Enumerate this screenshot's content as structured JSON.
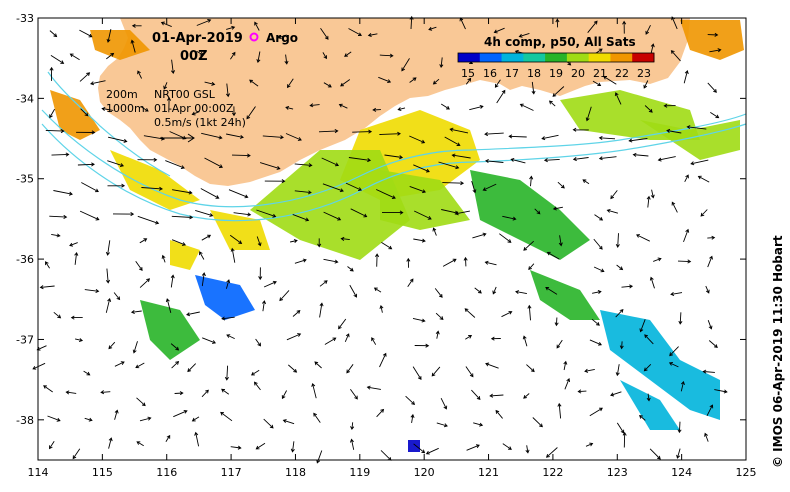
{
  "map": {
    "date_label": "01-Apr-2019",
    "time_label": "00Z",
    "argo_label": "Argo",
    "depth_labels": [
      "200m",
      "1000m"
    ],
    "product_lines": [
      "NRT00 GSL",
      "01-Apr 00:00Z",
      "0.5m/s (1kt 24h)"
    ],
    "colorbar_title": "4h comp, p50, All Sats",
    "colorbar_ticks": [
      "15",
      "16",
      "17",
      "18",
      "19",
      "20",
      "21",
      "22",
      "23"
    ],
    "lon_ticks": [
      "114",
      "115",
      "116",
      "117",
      "118",
      "119",
      "120",
      "121",
      "122",
      "123",
      "124",
      "125"
    ],
    "lat_ticks": [
      "-33",
      "-34",
      "-35",
      "-36",
      "-37",
      "-38"
    ],
    "lon_range": [
      114,
      125
    ],
    "lat_range": [
      -38.5,
      -33
    ],
    "credit": "© IMOS 06-Apr-2019 11:30 Hobart",
    "colors": {
      "land": "#f9c896",
      "argo": "#ff00ff",
      "isobath": "#5fd4e8",
      "colormap": [
        "#0000c8",
        "#0064ff",
        "#00b4dc",
        "#14c8a0",
        "#28b428",
        "#a0dc14",
        "#f0dc00",
        "#f09600",
        "#c80000"
      ]
    }
  }
}
